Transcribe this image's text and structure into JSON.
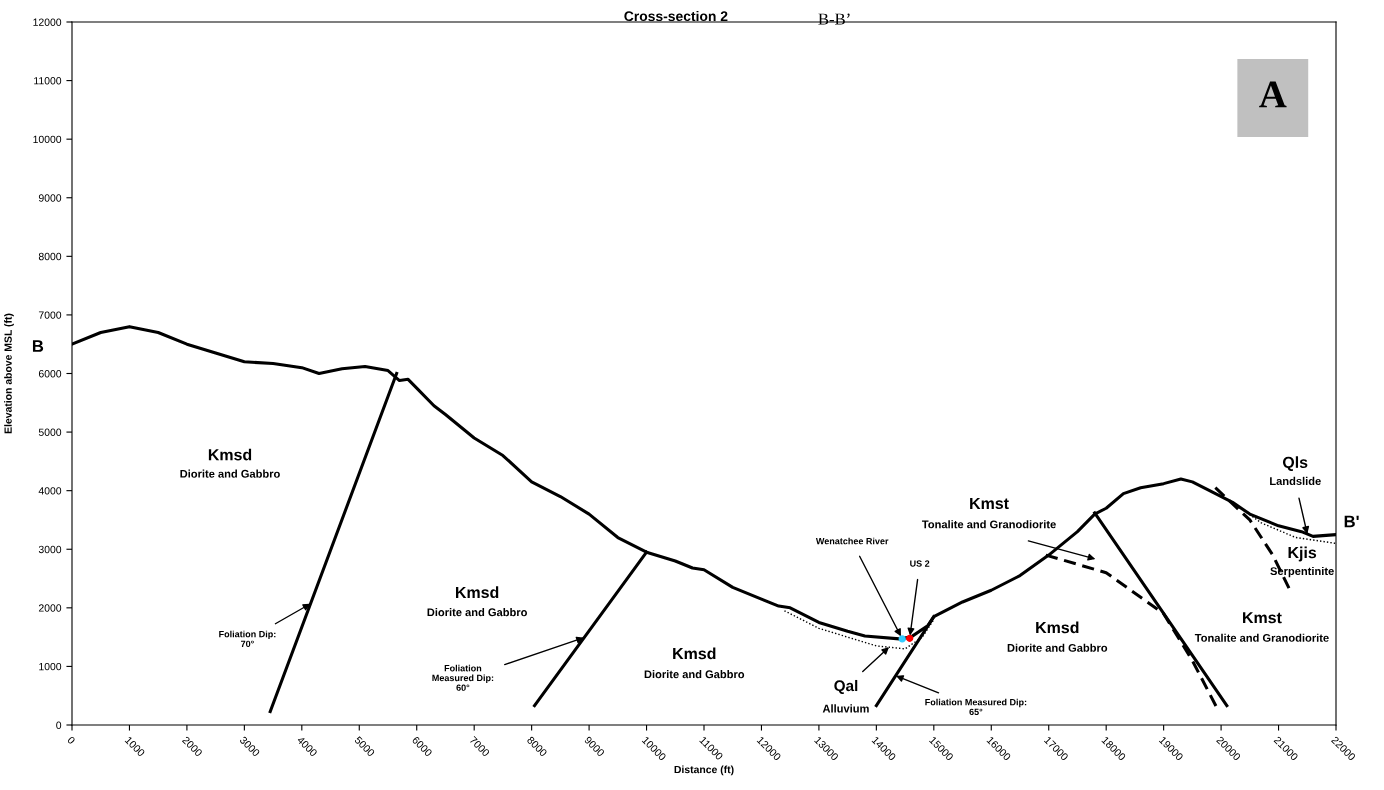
{
  "chart_data": {
    "type": "line",
    "title": "Cross-section 2",
    "subtitle": "B-B’",
    "xlabel": "Distance (ft)",
    "ylabel": "Elevation above MSL (ft)",
    "xlim": [
      0,
      22000
    ],
    "xticks": [
      0,
      1000,
      2000,
      3000,
      4000,
      5000,
      6000,
      7000,
      8000,
      9000,
      10000,
      11000,
      12000,
      13000,
      14000,
      15000,
      16000,
      17000,
      18000,
      19000,
      20000,
      21000,
      22000
    ],
    "ylim": [
      0,
      12000
    ],
    "yticks": [
      0,
      1000,
      2000,
      3000,
      4000,
      5000,
      6000,
      7000,
      8000,
      9000,
      10000,
      11000,
      12000
    ],
    "grid": false,
    "series": [
      {
        "color": "#000000",
        "line_style": "solid",
        "x": [
          0,
          500,
          1000,
          1500,
          2000,
          2500,
          3000,
          3500,
          4000,
          4300,
          4700,
          5100,
          5500,
          5700,
          5850,
          6000,
          6300,
          6500,
          7000,
          7500,
          8000,
          8500,
          9000,
          9500,
          10000,
          10500,
          10800,
          11000,
          11500,
          12000,
          12300,
          12500,
          13000,
          13500,
          13800,
          14400,
          14600,
          14900,
          15000,
          15500,
          16000,
          16500,
          17000,
          17500,
          17800,
          18000,
          18300,
          18600,
          19000,
          19300,
          19500,
          19800,
          20200,
          20500,
          21000,
          21400,
          21600,
          22000
        ],
        "values": [
          6500,
          6700,
          6800,
          6700,
          6500,
          6350,
          6200,
          6170,
          6100,
          6000,
          6080,
          6120,
          6050,
          5880,
          5900,
          5750,
          5450,
          5300,
          4900,
          4600,
          4150,
          3900,
          3600,
          3200,
          2950,
          2800,
          2680,
          2650,
          2350,
          2150,
          2030,
          2000,
          1750,
          1600,
          1520,
          1470,
          1500,
          1700,
          1850,
          2100,
          2300,
          2550,
          2900,
          3300,
          3600,
          3700,
          3950,
          4050,
          4120,
          4200,
          4150,
          4000,
          3800,
          3600,
          3400,
          3300,
          3220,
          3250
        ]
      },
      {
        "color": "#000000",
        "line_style": "solid",
        "x": [
          3450,
          5650
        ],
        "values": [
          230,
          6000
        ]
      },
      {
        "color": "#000000",
        "line_style": "solid",
        "x": [
          8050,
          10000
        ],
        "values": [
          330,
          2950
        ]
      },
      {
        "color": "#000000",
        "line_style": "solid",
        "x": [
          14000,
          15000
        ],
        "values": [
          330,
          1850
        ]
      },
      {
        "color": "#000000",
        "line_style": "solid",
        "x": [
          17800,
          20100
        ],
        "values": [
          3620,
          330
        ]
      },
      {
        "color": "#000000",
        "line_style": "dashed",
        "x": [
          16950,
          18000,
          19000,
          19500,
          19950
        ],
        "values": [
          2900,
          2600,
          1900,
          1100,
          250
        ]
      },
      {
        "color": "#000000",
        "line_style": "dashed",
        "x": [
          19900,
          20500,
          20900,
          21200
        ],
        "values": [
          4050,
          3500,
          2900,
          2300
        ]
      },
      {
        "color": "#000000",
        "line_style": "dotted",
        "x": [
          12400,
          13000,
          14000,
          14500,
          14800,
          15000
        ],
        "values": [
          1950,
          1650,
          1350,
          1300,
          1500,
          1800
        ]
      },
      {
        "color": "#000000",
        "line_style": "dotted",
        "x": [
          20200,
          20700,
          21300,
          22000
        ],
        "values": [
          3800,
          3450,
          3200,
          3100
        ]
      },
      {
        "type": "scatter",
        "color": "#33ccff",
        "x": [
          14450
        ],
        "values": [
          1470
        ]
      },
      {
        "type": "scatter",
        "color": "#ff0000",
        "x": [
          14580
        ],
        "values": [
          1480
        ]
      }
    ],
    "annotations": [
      "A",
      "B",
      "B'",
      "Kmsd",
      "Diorite and Gabbro",
      "Kmsd",
      "Diorite and Gabbro",
      "Kmsd",
      "Diorite and Gabbro",
      {
        "text": "Qal",
        "x": 14220,
        "y": 1330
      },
      "Alluvium",
      "Kmst",
      "Tonalite and Granodiorite",
      "Kmsd",
      "Diorite and Gabbro",
      "Kmst",
      "Tonalite and Granodiorite",
      "Qls",
      {
        "text": "Landslide",
        "x": 21500,
        "y": 3260
      },
      "Kjis",
      "Serpentinite",
      "Wenatchee River",
      "US 2",
      {
        "text": "Foliation Measured Dip:\n65°",
        "x": 14340,
        "y": 840
      },
      {
        "text": "Foliation Dip:\n70°",
        "x": 4150,
        "y": 2070
      },
      {
        "text": "Foliation\nMeasured Dip:\n60°",
        "x": 8910,
        "y": 1490
      }
    ]
  }
}
